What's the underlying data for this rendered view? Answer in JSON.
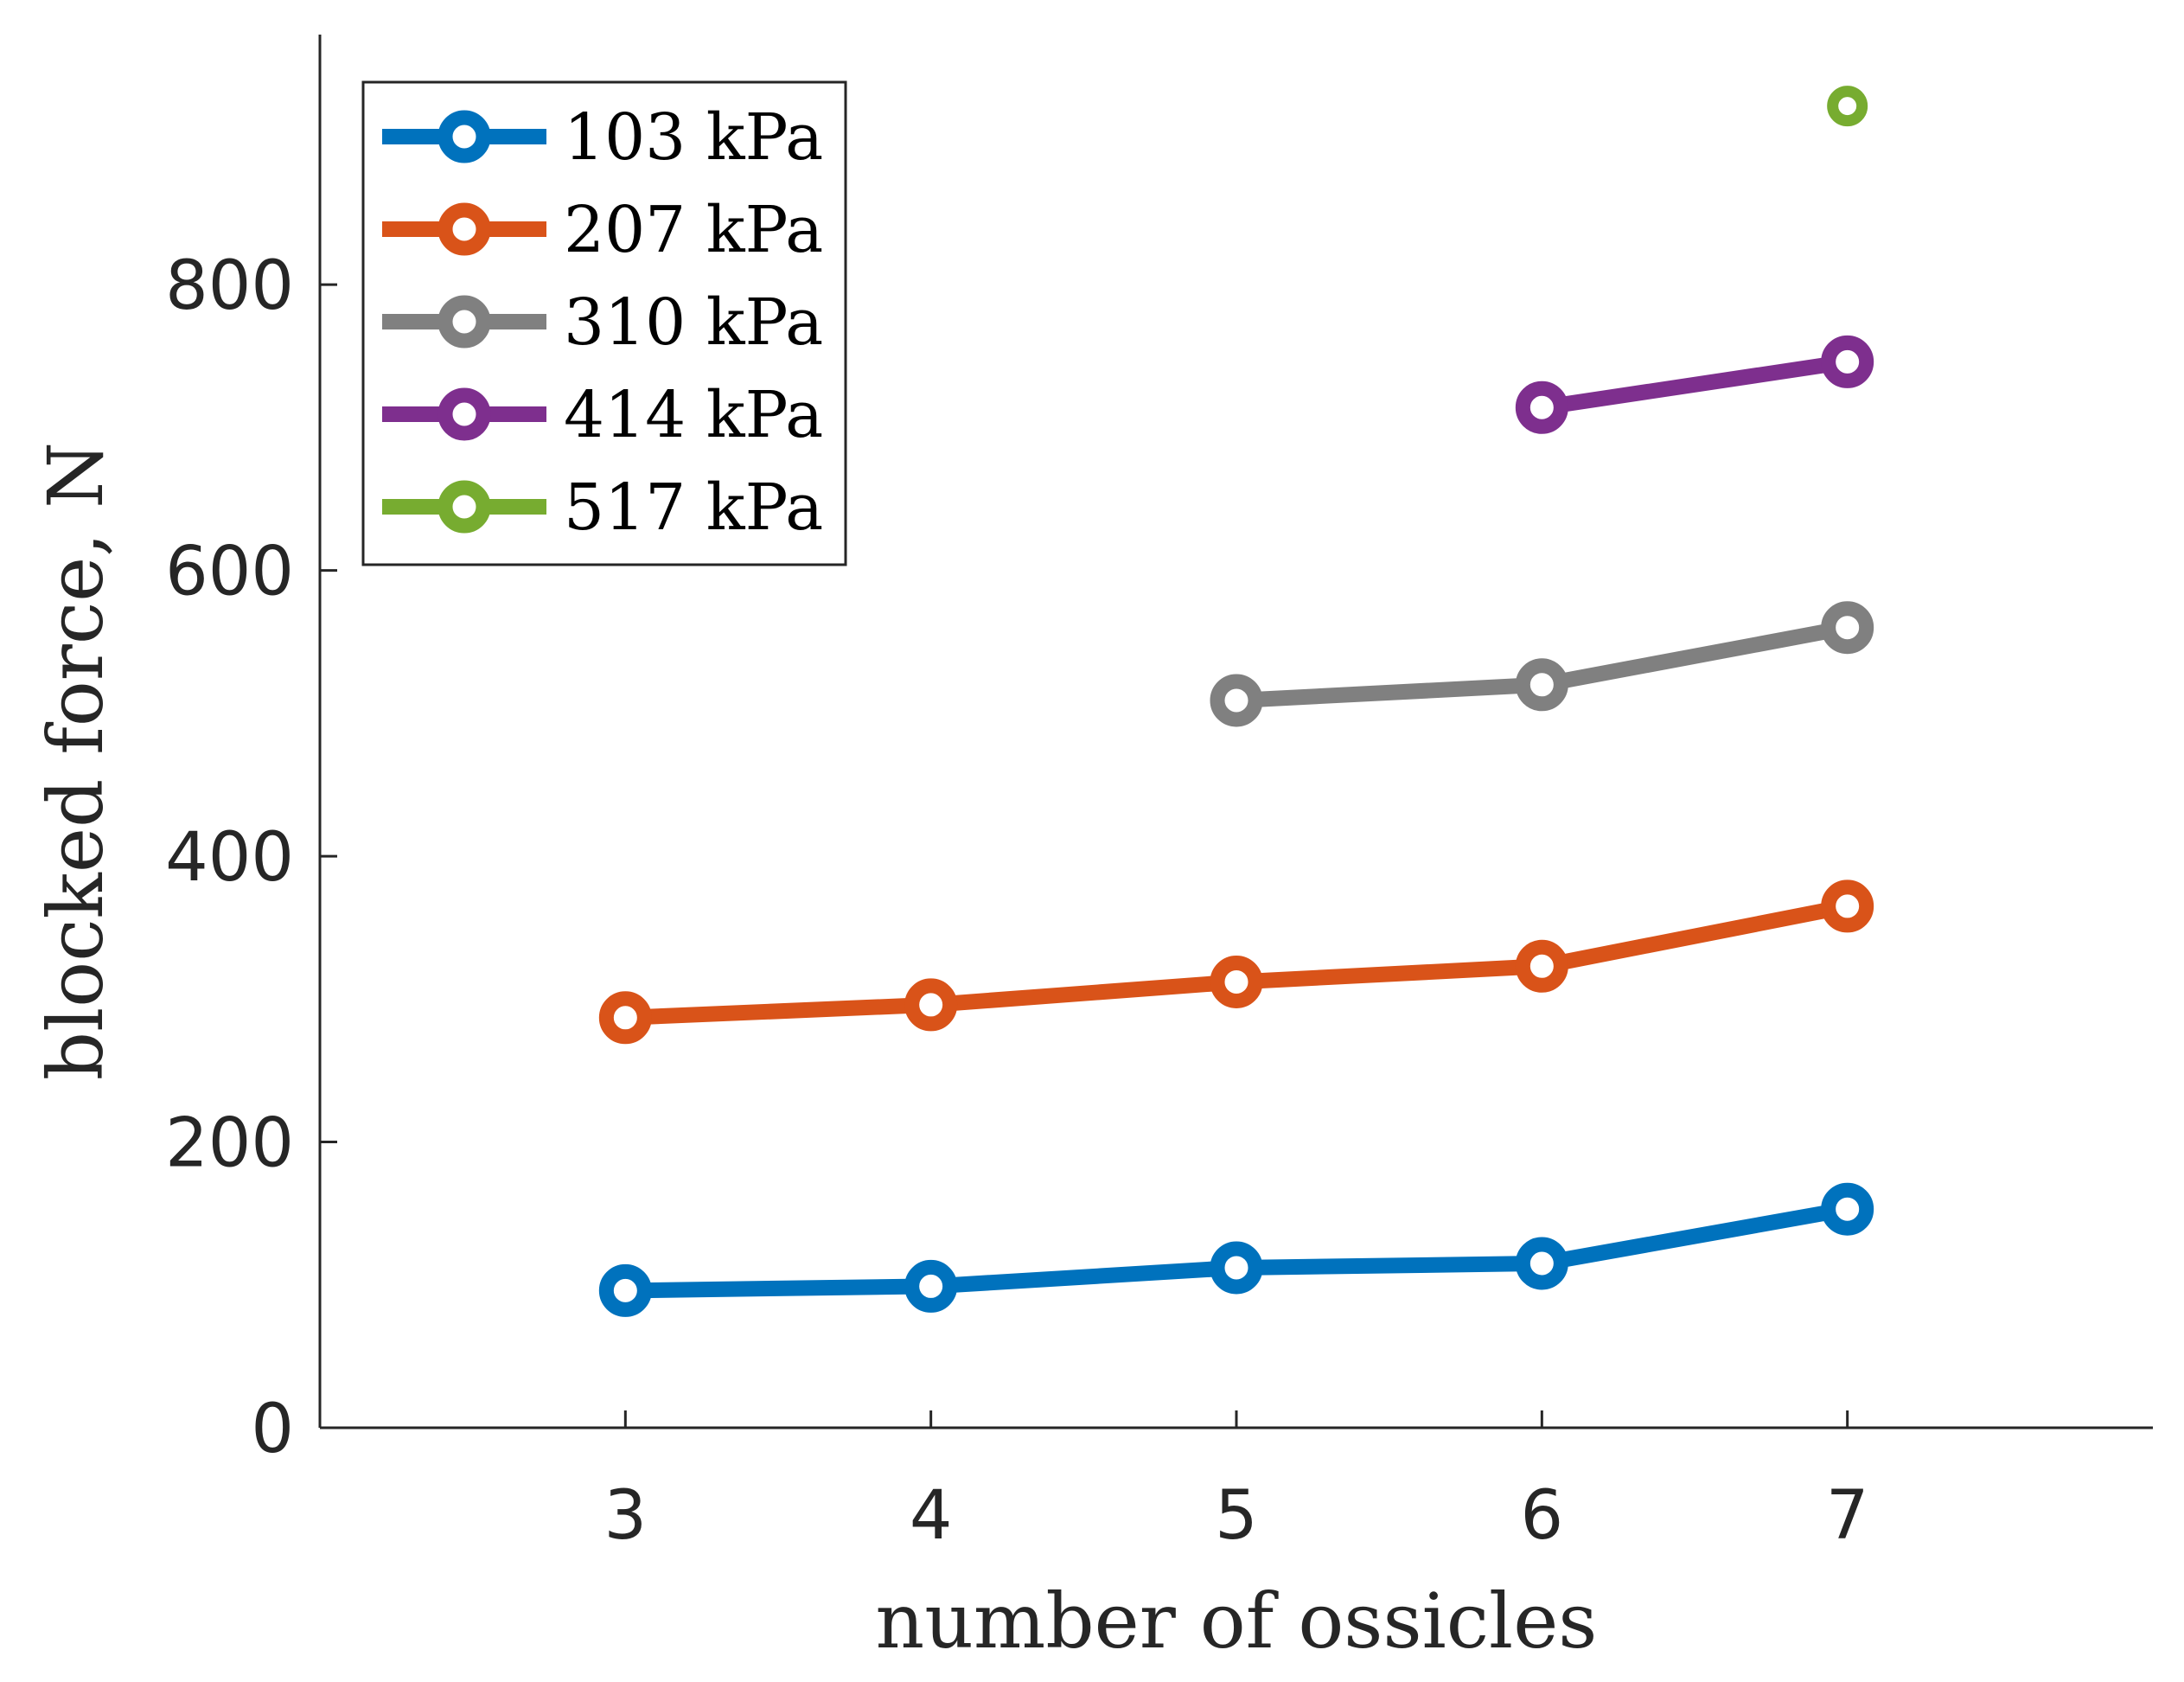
{
  "chart_data": {
    "type": "line",
    "xlabel": "number of ossicles",
    "ylabel": "blocked force, N",
    "xlim": [
      2,
      8
    ],
    "ylim": [
      0,
      975
    ],
    "xticks": [
      3,
      4,
      5,
      6,
      7
    ],
    "yticks": [
      0,
      200,
      400,
      600,
      800
    ],
    "grid": false,
    "legend_position": "top-left",
    "series": [
      {
        "name": "103 kPa",
        "color": "#0072BD",
        "x": [
          3,
          4,
          5,
          6,
          7
        ],
        "y": [
          96,
          99,
          112,
          115,
          153
        ]
      },
      {
        "name": "207 kPa",
        "color": "#D95319",
        "x": [
          3,
          4,
          5,
          6,
          7
        ],
        "y": [
          287,
          296,
          312,
          323,
          365
        ]
      },
      {
        "name": "310 kPa",
        "color": "#808080",
        "x": [
          5,
          6,
          7
        ],
        "y": [
          509,
          520,
          560
        ]
      },
      {
        "name": "414 kPa",
        "color": "#7E2F8E",
        "x": [
          6,
          7
        ],
        "y": [
          714,
          746
        ]
      },
      {
        "name": "517 kPa",
        "color": "#77AC30",
        "x": [
          7
        ],
        "y": [
          925
        ]
      }
    ]
  }
}
